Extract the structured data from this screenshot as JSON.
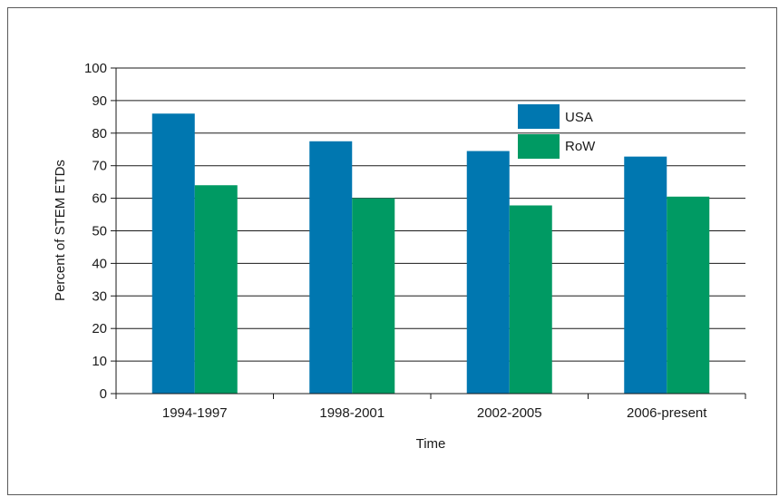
{
  "chart_data": {
    "type": "bar",
    "title": "",
    "xlabel": "Time",
    "ylabel": "Percent of STEM ETDs",
    "categories": [
      "1994-1997",
      "1998-2001",
      "2002-2005",
      "2006-present"
    ],
    "series": [
      {
        "name": "USA",
        "color": "#0077b0",
        "values": [
          86,
          77.5,
          74.5,
          72.8
        ]
      },
      {
        "name": "RoW",
        "color": "#009a63",
        "values": [
          64,
          60,
          57.8,
          60.5
        ]
      }
    ],
    "ylim": [
      0,
      100
    ],
    "yticks": [
      0,
      10,
      20,
      30,
      40,
      50,
      60,
      70,
      80,
      90,
      100
    ],
    "grid": true,
    "legend_position": "top-right"
  }
}
